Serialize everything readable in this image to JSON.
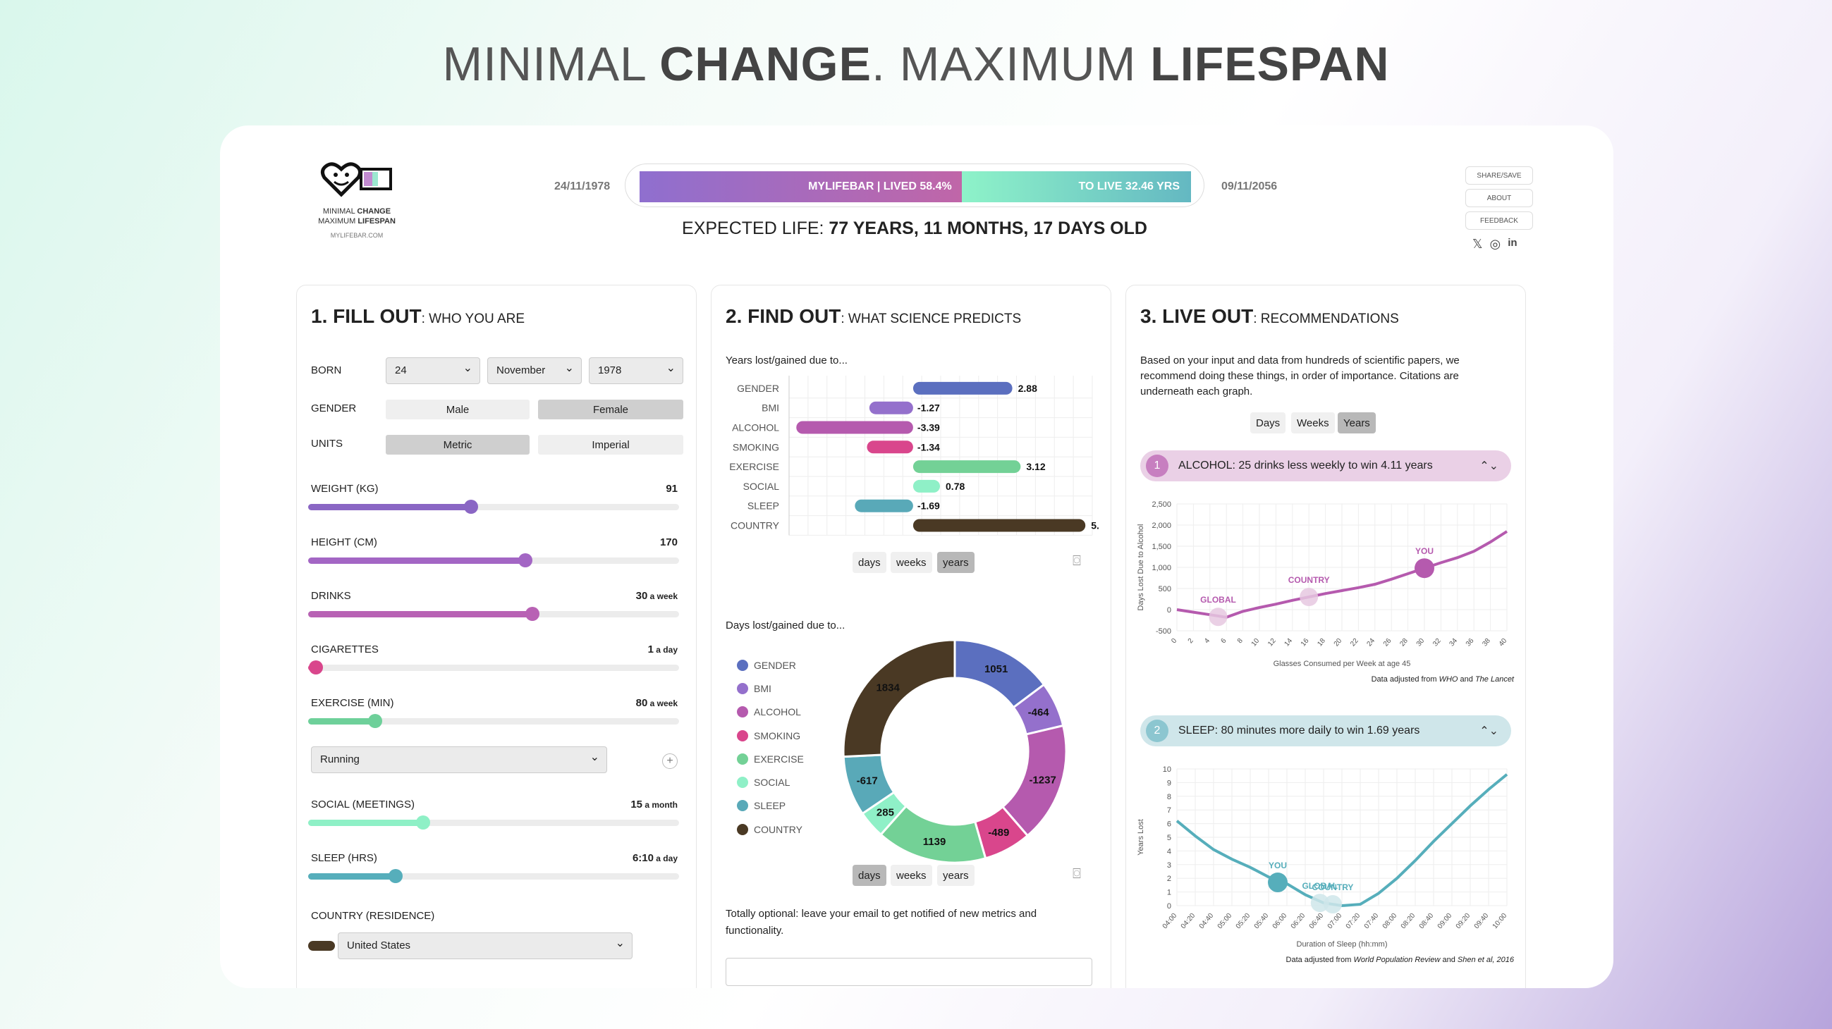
{
  "hero": {
    "pre1": "MINIMAL ",
    "bold1": "CHANGE",
    "mid": ".  MAXIMUM ",
    "bold2": "LIFESPAN"
  },
  "header": {
    "logo_line1_a": "MINIMAL ",
    "logo_line1_b": "CHANGE",
    "logo_line2_a": "MAXIMUM ",
    "logo_line2_b": "LIFESPAN",
    "logo_url": "MYLIFEBAR.COM",
    "birth_date": "24/11/1978",
    "death_date": "09/11/2056",
    "lifebar": {
      "lived_label": "MYLIFEBAR  |  LIVED 58.4%",
      "lived_fraction": 0.584,
      "left_label": "TO LIVE 32.46 YRS"
    },
    "expected_prefix": "EXPECTED LIFE: ",
    "expected_value": "77 YEARS, 11 MONTHS, 17 DAYS OLD",
    "buttons": [
      "SHARE/SAVE",
      "ABOUT",
      "FEEDBACK"
    ],
    "social_icons": [
      "x-icon",
      "instagram-icon",
      "linkedin-icon"
    ]
  },
  "fill_out": {
    "title_num": "1. FILL OUT",
    "title_rest": ": WHO YOU ARE",
    "born_label": "BORN",
    "born_day": "24",
    "born_month": "November",
    "born_year": "1978",
    "gender_label": "GENDER",
    "gender_options": [
      "Male",
      "Female"
    ],
    "gender_selected": "Female",
    "units_label": "UNITS",
    "units_options": [
      "Metric",
      "Imperial"
    ],
    "units_selected": "Metric",
    "sliders": [
      {
        "label": "WEIGHT (KG)",
        "value": "91",
        "unit": "",
        "fraction": 0.44,
        "color": "#8a66c4"
      },
      {
        "label": "HEIGHT (CM)",
        "value": "170",
        "unit": "",
        "fraction": 0.585,
        "color": "#a366c4"
      },
      {
        "label": "DRINKS",
        "value": "30",
        "unit": " a week",
        "fraction": 0.605,
        "color": "#b862b4"
      },
      {
        "label": "CIGARETTES",
        "value": "1",
        "unit": " a day",
        "fraction": 0.02,
        "color": "#d9468c"
      },
      {
        "label": "EXERCISE (MIN)",
        "value": "80",
        "unit": " a week",
        "fraction": 0.18,
        "color": "#6ed09a"
      },
      {
        "label": "SOCIAL (MEETINGS)",
        "value": "15",
        "unit": " a month",
        "fraction": 0.31,
        "color": "#8ef0c6"
      },
      {
        "label": "SLEEP (HRS)",
        "value": "6:10",
        "unit": " a day",
        "fraction": 0.235,
        "color": "#56aebb"
      }
    ],
    "exercise_type": "Running",
    "country_label": "COUNTRY (RESIDENCE)",
    "country_value": "United States",
    "country_color": "#4a3924"
  },
  "find_out": {
    "title_num": "2. FIND OUT",
    "title_rest": ": WHAT SCIENCE PREDICTS",
    "bar_title": "Years lost/gained due to...",
    "donut_title": "Days lost/gained due to...",
    "segments": [
      "days",
      "weeks",
      "years"
    ],
    "bar_selected": "years",
    "donut_selected": "days",
    "optional_text": "Totally optional: leave your email to get notified of new metrics and functionality."
  },
  "chart_data": [
    {
      "type": "bar",
      "title": "Years lost/gained due to...",
      "categories": [
        "GENDER",
        "BMI",
        "ALCOHOL",
        "SMOKING",
        "EXERCISE",
        "SOCIAL",
        "SLEEP",
        "COUNTRY"
      ],
      "values": [
        2.88,
        -1.27,
        -3.39,
        -1.34,
        3.12,
        0.78,
        -1.69,
        5.0
      ],
      "value_labels": [
        "2.88",
        "-1.27",
        "-3.39",
        "-1.34",
        "3.12",
        "0.78",
        "-1.69",
        "5."
      ],
      "colors": [
        "#5b6fbf",
        "#9470cc",
        "#b55aae",
        "#d9468c",
        "#73d196",
        "#8ff0c7",
        "#59a9b8",
        "#4a3924"
      ],
      "xlim": [
        -3.6,
        5.2
      ]
    },
    {
      "type": "pie",
      "title": "Days lost/gained due to...",
      "categories": [
        "GENDER",
        "BMI",
        "ALCOHOL",
        "SMOKING",
        "EXERCISE",
        "SOCIAL",
        "SLEEP",
        "COUNTRY"
      ],
      "values": [
        1051,
        -464,
        -1237,
        -489,
        1139,
        285,
        -617,
        1834
      ],
      "colors": [
        "#5b6fbf",
        "#9470cc",
        "#b55aae",
        "#d9468c",
        "#73d196",
        "#8ff0c7",
        "#59a9b8",
        "#4a3924"
      ]
    },
    {
      "type": "line",
      "xlabel": "Glasses Consumed per Week at age 45",
      "ylabel": "Days Lost Due to Alcohol",
      "x": [
        0,
        2,
        4,
        6,
        8,
        10,
        12,
        14,
        16,
        18,
        20,
        22,
        24,
        26,
        28,
        30,
        32,
        34,
        36,
        38,
        40
      ],
      "y": [
        0,
        -60,
        -120,
        -180,
        -40,
        50,
        130,
        220,
        300,
        380,
        450,
        520,
        600,
        720,
        850,
        980,
        1110,
        1230,
        1380,
        1600,
        1850
      ],
      "xlim": [
        0,
        40
      ],
      "ylim": [
        -500,
        2500
      ],
      "yticks": [
        -500,
        0,
        500,
        1000,
        1500,
        2000,
        2500
      ],
      "ytick_labels": [
        "-500",
        "0",
        "500",
        "1,000",
        "1,500",
        "2,000",
        "2,500"
      ],
      "markers": [
        {
          "label": "GLOBAL",
          "x": 5,
          "y": -170,
          "color": "#e6c8e0",
          "text_color": "#b55aae"
        },
        {
          "label": "COUNTRY",
          "x": 16,
          "y": 300,
          "color": "#e6c8e0",
          "text_color": "#b55aae"
        },
        {
          "label": "YOU",
          "x": 30,
          "y": 980,
          "color": "#b55aae",
          "text_color": "#b55aae"
        }
      ],
      "color": "#b55aae",
      "source_prefix": "Data adjusted from ",
      "source_a": "WHO",
      "source_mid": " and ",
      "source_b": "The Lancet"
    },
    {
      "type": "line",
      "xlabel": "Duration of Sleep (hh:mm)",
      "ylabel": "Years Lost",
      "x": [
        "04:00",
        "04:20",
        "04:40",
        "05:00",
        "05:20",
        "05:40",
        "06:00",
        "06:20",
        "06:40",
        "07:00",
        "07:20",
        "07:40",
        "08:00",
        "08:20",
        "08:40",
        "09:00",
        "09:20",
        "09:40",
        "10:00"
      ],
      "y": [
        6.2,
        5.1,
        4.1,
        3.4,
        2.8,
        2.1,
        1.6,
        0.8,
        0.2,
        0,
        0.1,
        0.9,
        2.0,
        3.3,
        4.7,
        6.0,
        7.3,
        8.5,
        9.6
      ],
      "ylim": [
        0,
        10
      ],
      "yticks": [
        0,
        1,
        2,
        3,
        4,
        5,
        6,
        7,
        8,
        9,
        10
      ],
      "markers": [
        {
          "label": "YOU",
          "x_index": 5.5,
          "y": 1.7,
          "color": "#56aebb",
          "text_color": "#56aebb"
        },
        {
          "label": "GLOBAL",
          "x_index": 7.8,
          "y": 0.2,
          "color": "#cfe6ea",
          "text_color": "#56aebb"
        },
        {
          "label": "COUNTRY",
          "x_index": 8.5,
          "y": 0.1,
          "color": "#cfe6ea",
          "text_color": "#56aebb"
        }
      ],
      "color": "#56aebb",
      "source_prefix": "Data adjusted from ",
      "source_a": "World Population Review",
      "source_mid": " and ",
      "source_b": "Shen et al, 2016"
    }
  ],
  "live_out": {
    "title_num": "3. LIVE OUT",
    "title_rest": ": RECOMMENDATIONS",
    "intro": "Based on your input and data from hundreds of scientific papers, we recommend doing these things, in order of importance. Citations are underneath each graph.",
    "segments": [
      "Days",
      "Weeks",
      "Years"
    ],
    "selected": "Years",
    "recs": [
      {
        "num": "1",
        "text": "ALCOHOL: 25 drinks less weekly to win 4.11 years",
        "bg": "#ead0e6",
        "num_bg": "#c77fc0"
      },
      {
        "num": "2",
        "text": "SLEEP: 80 minutes more daily to win 1.69 years",
        "bg": "#cfe6ea",
        "num_bg": "#8cc6d0"
      }
    ]
  }
}
